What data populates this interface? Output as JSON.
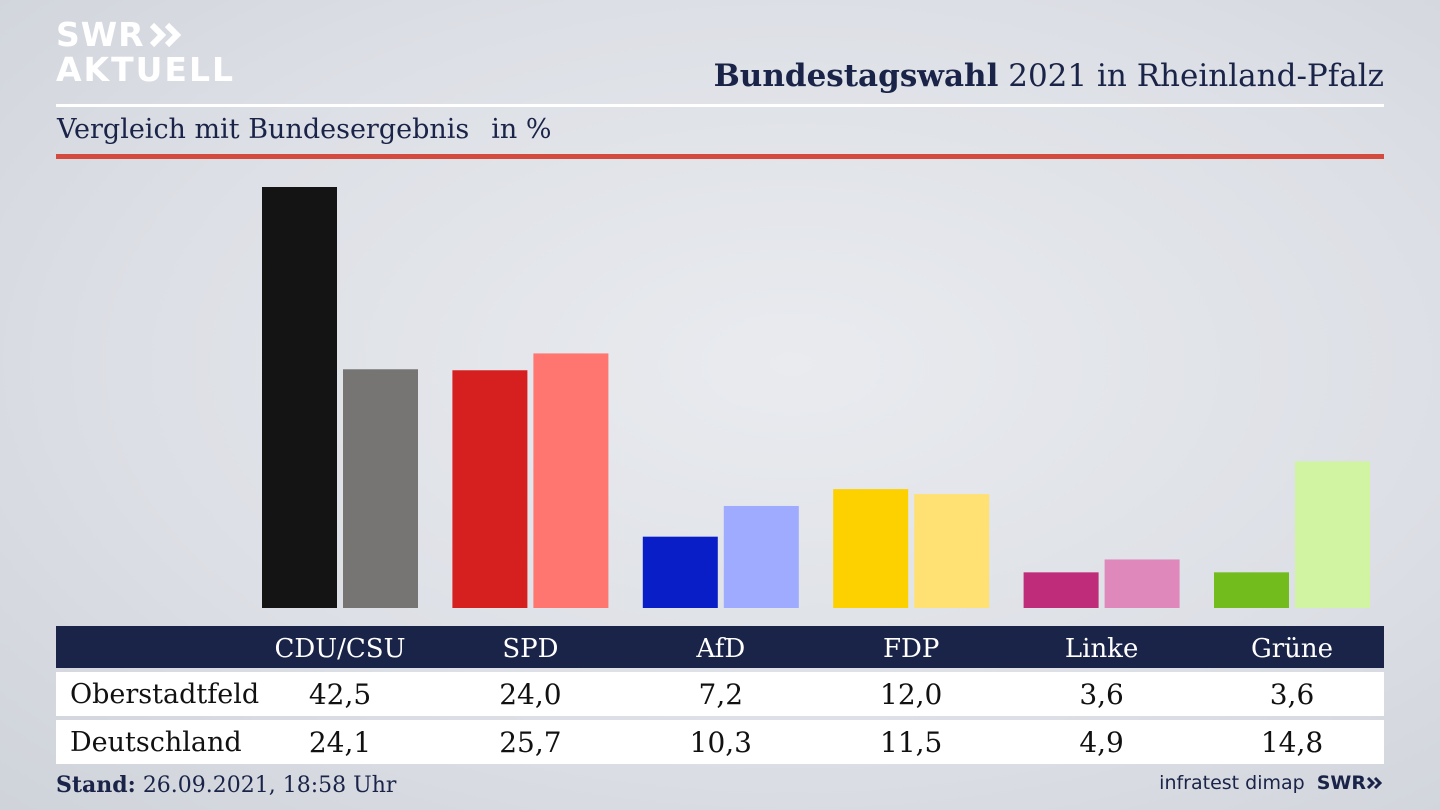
{
  "logo": {
    "line1": "SWR",
    "line2": "AKTUELL"
  },
  "header": {
    "title_bold": "Bundestagswahl",
    "title_rest": "2021 in Rheinland-Pfalz"
  },
  "subtitle": {
    "text": "Vergleich mit Bundesergebnis",
    "unit": "in %"
  },
  "chart_data": {
    "type": "bar",
    "categories": [
      "CDU/CSU",
      "SPD",
      "AfD",
      "FDP",
      "Linke",
      "Grüne"
    ],
    "series": [
      {
        "name": "Oberstadtfeld",
        "values": [
          42.5,
          24.0,
          7.2,
          12.0,
          3.6,
          3.6
        ]
      },
      {
        "name": "Deutschland",
        "values": [
          24.1,
          25.7,
          10.3,
          11.5,
          4.9,
          14.8
        ]
      }
    ],
    "colors": {
      "Oberstadtfeld": [
        "#141414",
        "#d62020",
        "#0a1ec8",
        "#fdd000",
        "#bf2d7a",
        "#72bc1e"
      ],
      "Deutschland": [
        "#767574",
        "#ff7670",
        "#9eabff",
        "#ffe173",
        "#df88bc",
        "#d1f4a3"
      ]
    },
    "ylim": [
      0,
      42.5
    ],
    "grid": false
  },
  "table": {
    "rows": [
      {
        "label": "Oberstadtfeld",
        "values": [
          "42,5",
          "24,0",
          "7,2",
          "12,0",
          "3,6",
          "3,6"
        ]
      },
      {
        "label": "Deutschland",
        "values": [
          "24,1",
          "25,7",
          "10,3",
          "11,5",
          "4,9",
          "14,8"
        ]
      }
    ]
  },
  "footer": {
    "stand_label": "Stand:",
    "stand_value": "26.09.2021, 18:58 Uhr"
  },
  "source": {
    "text": "infratest dimap",
    "brand": "SWR"
  }
}
